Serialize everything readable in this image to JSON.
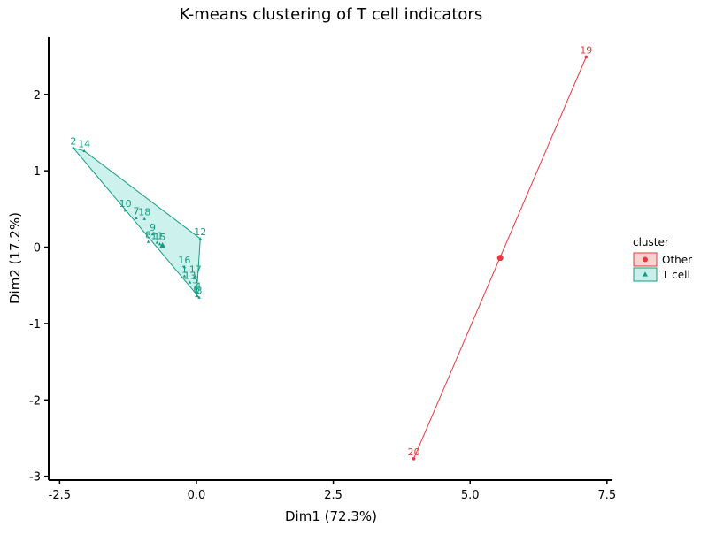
{
  "colors": {
    "other": "#e8383b",
    "tcell": "#139c82",
    "other_fill": "#f8d3d2",
    "tcell_fill": "#c8efea"
  },
  "chart_data": {
    "type": "scatter",
    "title": "K-means clustering of T cell indicators",
    "xlabel": "Dim1 (72.3%)",
    "ylabel": "Dim2 (17.2%)",
    "xlim": [
      -2.7,
      7.6
    ],
    "ylim": [
      -3.05,
      2.75
    ],
    "xticks": [
      -2.5,
      0.0,
      2.5,
      5.0,
      7.5
    ],
    "xtick_labels": [
      "-2.5",
      "0.0",
      "2.5",
      "5.0",
      "7.5"
    ],
    "yticks": [
      -3,
      -2,
      -1,
      0,
      1,
      2
    ],
    "ytick_labels": [
      "-3",
      "-2",
      "-1",
      "0",
      "1",
      "2"
    ],
    "grid": false,
    "legend": {
      "title": "cluster",
      "position": "right",
      "entries": [
        "Other",
        "T cell"
      ]
    },
    "series": [
      {
        "name": "Other",
        "color": "#e8383b",
        "marker": "circle",
        "hull": [
          "19",
          "20"
        ],
        "centroid": {
          "x": 5.55,
          "y": -0.14
        },
        "points": [
          {
            "label": "19",
            "x": 7.12,
            "y": 2.49
          },
          {
            "label": "20",
            "x": 3.97,
            "y": -2.77
          }
        ]
      },
      {
        "name": "T cell",
        "color": "#139c82",
        "marker": "triangle",
        "hull": [
          "2",
          "14",
          "12",
          "6",
          "3"
        ],
        "centroid": {
          "x": -0.62,
          "y": 0.02
        },
        "points": [
          {
            "label": "2",
            "x": -2.25,
            "y": 1.3
          },
          {
            "label": "14",
            "x": -2.05,
            "y": 1.26
          },
          {
            "label": "10",
            "x": -1.3,
            "y": 0.48
          },
          {
            "label": "7",
            "x": -1.1,
            "y": 0.38
          },
          {
            "label": "18",
            "x": -0.95,
            "y": 0.37
          },
          {
            "label": "9",
            "x": -0.8,
            "y": 0.17
          },
          {
            "label": "8",
            "x": -0.88,
            "y": 0.07
          },
          {
            "label": "11",
            "x": -0.72,
            "y": 0.06
          },
          {
            "label": "15",
            "x": -0.67,
            "y": 0.04
          },
          {
            "label": "12",
            "x": 0.07,
            "y": 0.11
          },
          {
            "label": "16",
            "x": -0.22,
            "y": -0.26
          },
          {
            "label": "1",
            "x": -0.22,
            "y": -0.38
          },
          {
            "label": "17",
            "x": -0.02,
            "y": -0.38
          },
          {
            "label": "13",
            "x": -0.12,
            "y": -0.46
          },
          {
            "label": "5",
            "x": -0.02,
            "y": -0.52
          },
          {
            "label": "4",
            "x": 0.03,
            "y": -0.6
          },
          {
            "label": "6",
            "x": 0.0,
            "y": -0.64
          },
          {
            "label": "3",
            "x": 0.05,
            "y": -0.66
          }
        ]
      }
    ]
  }
}
